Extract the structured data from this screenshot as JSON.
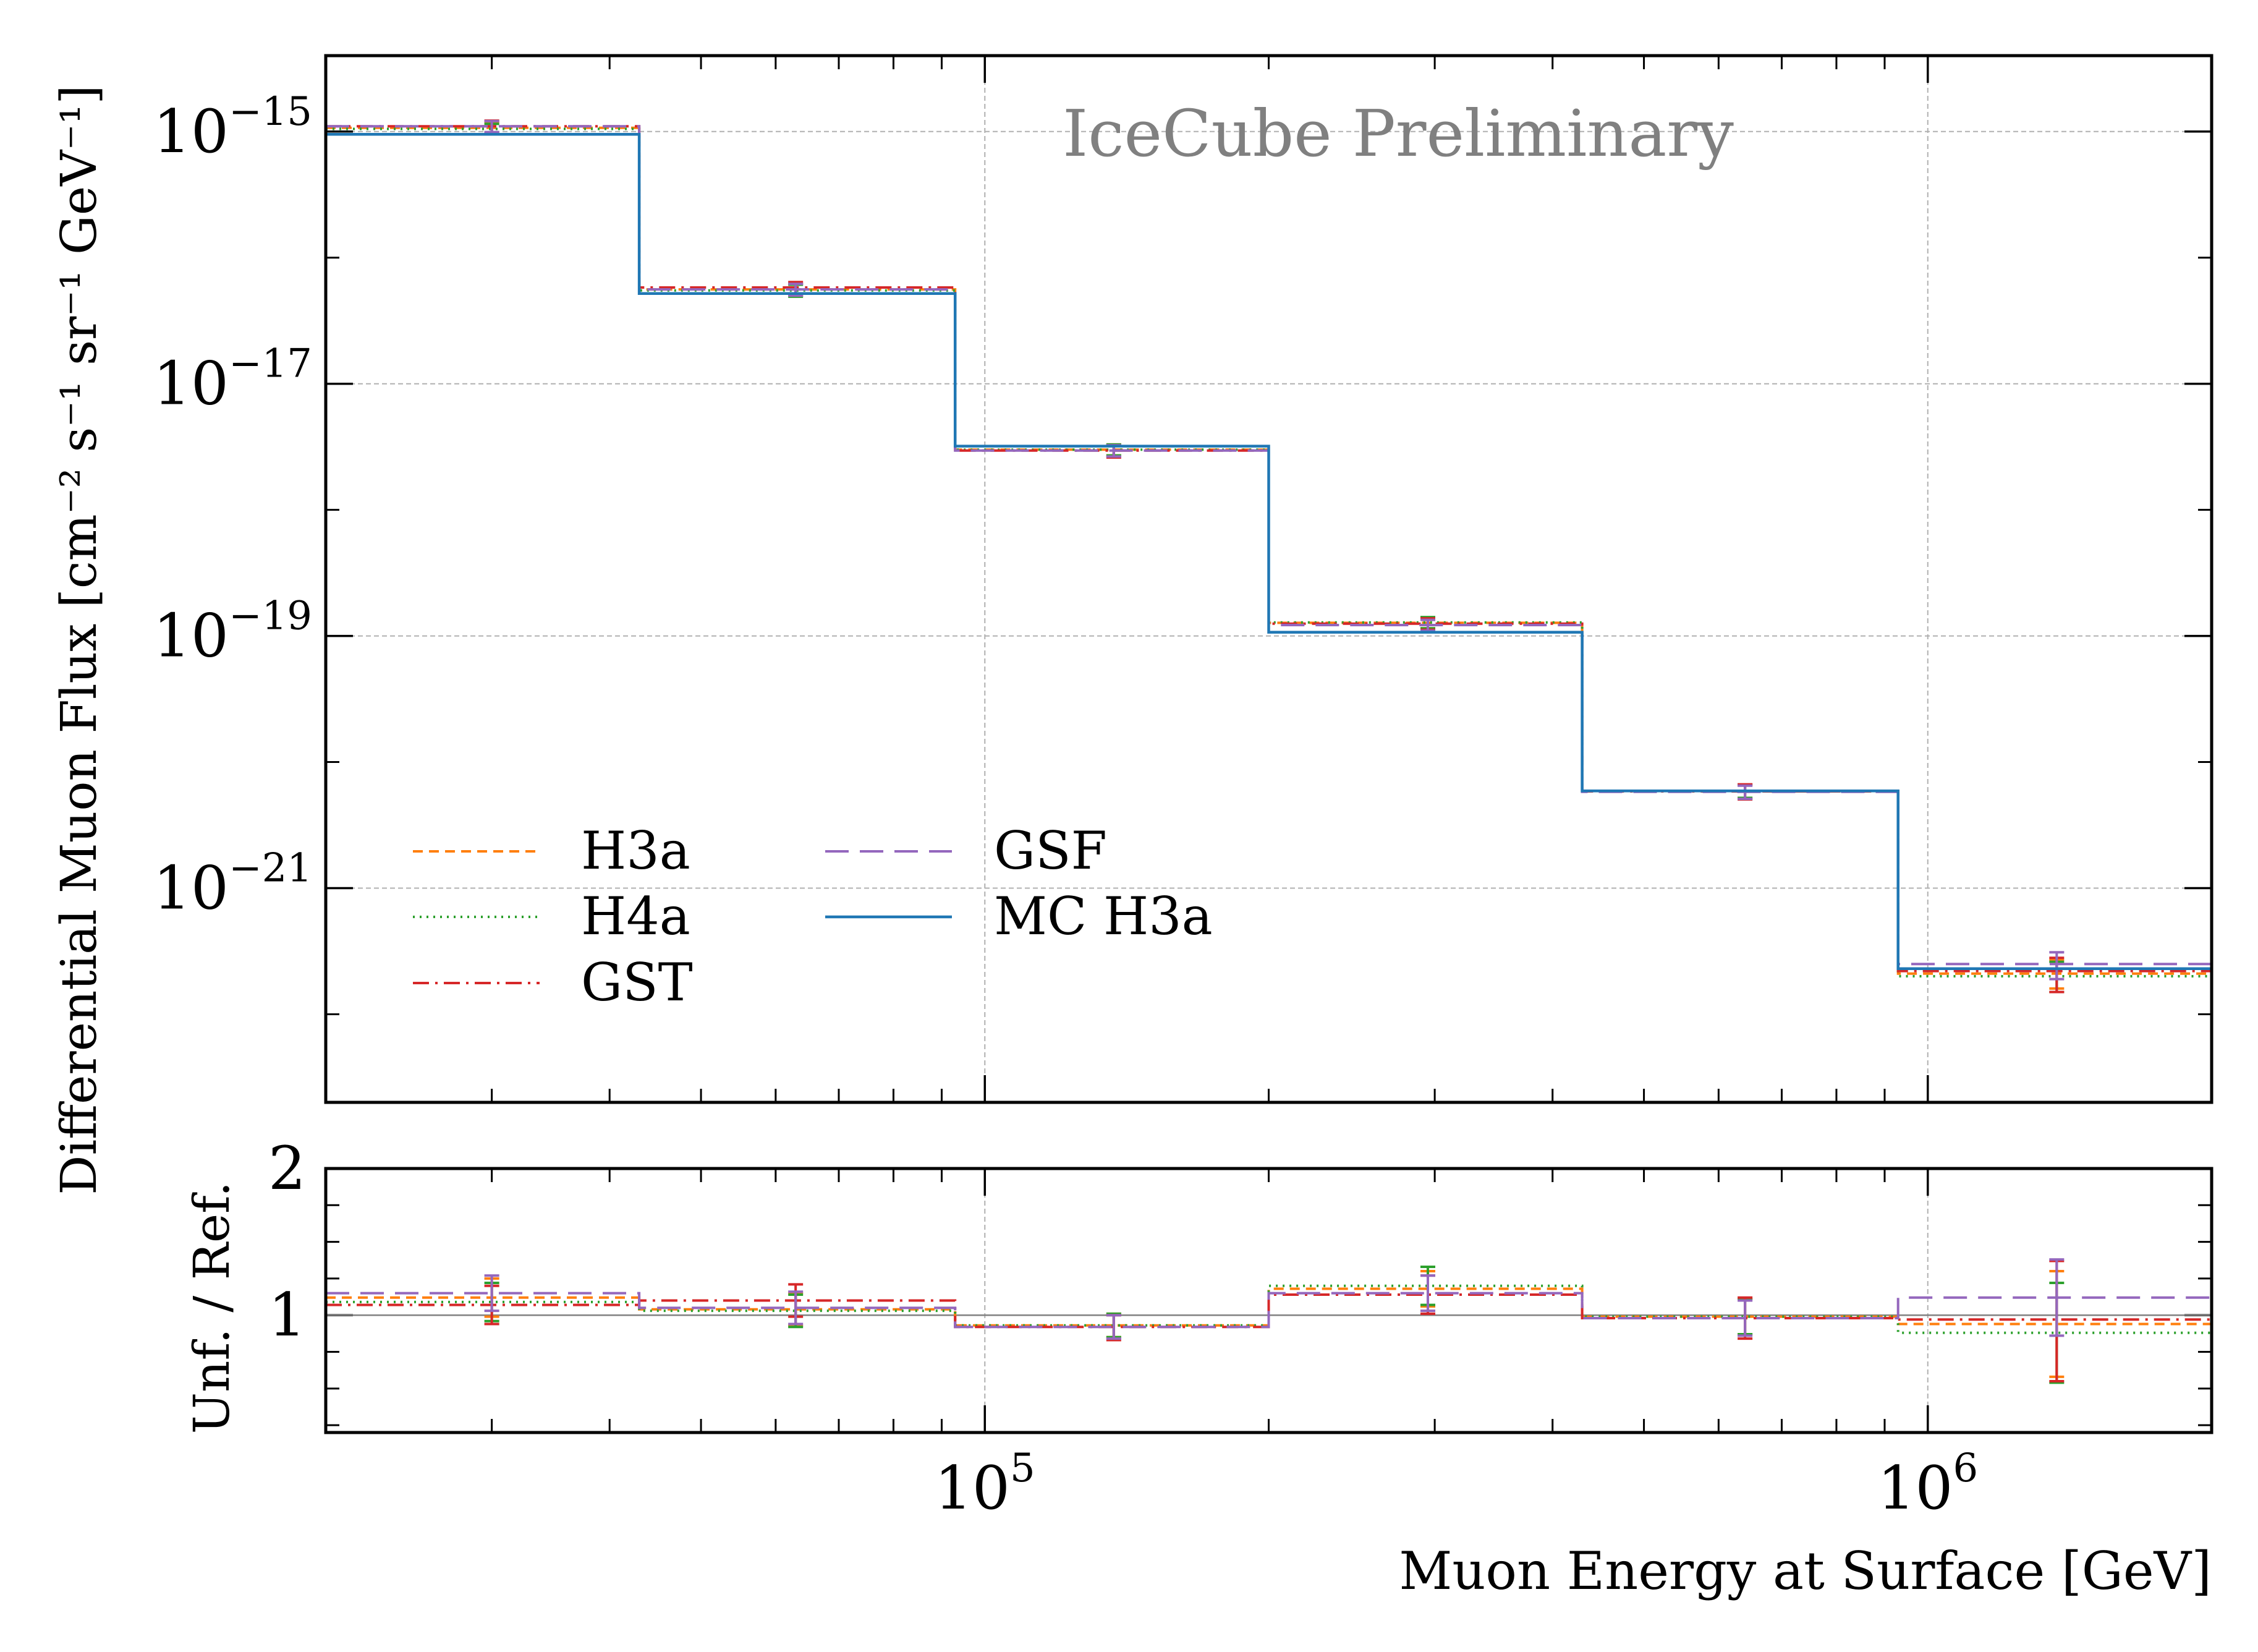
{
  "chart_data": [
    {
      "panel": "main",
      "type": "step",
      "title": "",
      "annotation": "IceCube Preliminary",
      "ylabel": "Differential Muon Flux [cm⁻² s⁻¹ sr⁻¹ GeV⁻¹]",
      "xlabel": "",
      "xscale": "log",
      "yscale": "log",
      "xlim": [
        20000,
        2000000
      ],
      "ylim": [
        2e-23,
        4e-15
      ],
      "grid": true,
      "legend_position": "lower-left",
      "y_ticks": [
        {
          "value": 1e-15,
          "base": "10",
          "exp": "−15"
        },
        {
          "value": 1e-17,
          "base": "10",
          "exp": "−17"
        },
        {
          "value": 1e-19,
          "base": "10",
          "exp": "−19"
        },
        {
          "value": 1e-21,
          "base": "10",
          "exp": "−21"
        }
      ],
      "bin_edges": [
        20000,
        43000,
        93000,
        200000,
        430000,
        930000,
        2000000
      ],
      "bin_centers": [
        30000,
        63000,
        137000,
        295000,
        640000,
        1370000
      ],
      "series": [
        {
          "name": "H3a",
          "color": "#ff7f0e",
          "style": "dashed",
          "values": [
            1.07e-15,
            5.6e-17,
            3e-18,
            1.27e-19,
            5.9e-21,
            2.1e-22
          ],
          "err_low": [
            1.1e-16,
            6e-18,
            3e-19,
            1.2e-20,
            7e-22,
            5e-23
          ],
          "err_high": [
            1.1e-16,
            6e-18,
            3e-19,
            1.2e-20,
            7e-22,
            6e-23
          ]
        },
        {
          "name": "H4a",
          "color": "#2ca02c",
          "style": "dotted",
          "values": [
            1.05e-15,
            5.5e-17,
            3e-18,
            1.28e-19,
            5.9e-21,
            2e-22
          ],
          "err_low": [
            1e-16,
            6e-18,
            3e-19,
            1.3e-20,
            7e-22,
            5e-23
          ],
          "err_high": [
            1e-16,
            6e-18,
            3e-19,
            1.3e-20,
            7e-22,
            6e-23
          ]
        },
        {
          "name": "GST",
          "color": "#d62728",
          "style": "dashdot",
          "values": [
            1.1e-15,
            5.8e-17,
            2.95e-18,
            1.25e-19,
            5.85e-21,
            2.2e-22
          ],
          "err_low": [
            1.2e-16,
            6e-18,
            3.5e-19,
            1.3e-20,
            8e-22,
            7e-23
          ],
          "err_high": [
            1.2e-16,
            6e-18,
            3e-19,
            1.3e-20,
            8e-22,
            6e-23
          ]
        },
        {
          "name": "GSF",
          "color": "#9467bd",
          "style": "longdash",
          "values": [
            1.1e-15,
            5.6e-17,
            2.95e-18,
            1.22e-19,
            5.8e-21,
            2.5e-22
          ],
          "err_low": [
            1.1e-16,
            6e-18,
            3e-19,
            1.2e-20,
            7e-22,
            6e-23
          ],
          "err_high": [
            1.1e-16,
            6e-18,
            3e-19,
            1.2e-20,
            7e-22,
            6e-23
          ]
        },
        {
          "name": "MC H3a",
          "color": "#1f77b4",
          "style": "solid",
          "values": [
            9.5e-16,
            5.2e-17,
            3.2e-18,
            1.07e-19,
            5.9e-21,
            2.3e-22
          ]
        }
      ]
    },
    {
      "panel": "ratio",
      "type": "step",
      "ylabel": "Unf. / Ref.",
      "xlabel": "Muon Energy at Surface [GeV]",
      "xscale": "log",
      "yscale": "linear",
      "xlim": [
        20000,
        2000000
      ],
      "ylim": [
        0.2,
        2.0
      ],
      "grid": true,
      "reference_line": 1.0,
      "y_ticks": [
        {
          "value": 1,
          "label": "1"
        },
        {
          "value": 2,
          "label": "2"
        }
      ],
      "x_ticks": [
        {
          "value": 100000,
          "base": "10",
          "exp": "5"
        },
        {
          "value": 1000000,
          "base": "10",
          "exp": "6"
        }
      ],
      "bin_edges": [
        20000,
        43000,
        93000,
        200000,
        430000,
        930000,
        2000000
      ],
      "bin_centers": [
        30000,
        63000,
        137000,
        295000,
        640000,
        1370000
      ],
      "series": [
        {
          "name": "H3a",
          "color": "#ff7f0e",
          "style": "dashed",
          "values": [
            1.12,
            1.04,
            0.93,
            1.18,
            0.99,
            0.94
          ],
          "err_low": [
            0.13,
            0.11,
            0.08,
            0.12,
            0.12,
            0.36
          ],
          "err_high": [
            0.13,
            0.11,
            0.08,
            0.12,
            0.12,
            0.36
          ]
        },
        {
          "name": "H4a",
          "color": "#2ca02c",
          "style": "dotted",
          "values": [
            1.09,
            1.03,
            0.93,
            1.2,
            0.99,
            0.88
          ],
          "err_low": [
            0.13,
            0.11,
            0.08,
            0.13,
            0.12,
            0.34
          ],
          "err_high": [
            0.13,
            0.11,
            0.08,
            0.13,
            0.12,
            0.34
          ]
        },
        {
          "name": "GST",
          "color": "#d62728",
          "style": "dashdot",
          "values": [
            1.07,
            1.1,
            0.92,
            1.14,
            0.98,
            0.97
          ],
          "err_low": [
            0.13,
            0.11,
            0.09,
            0.13,
            0.14,
            0.42
          ],
          "err_high": [
            0.13,
            0.11,
            0.08,
            0.13,
            0.14,
            0.4
          ]
        },
        {
          "name": "GSF",
          "color": "#9467bd",
          "style": "longdash",
          "values": [
            1.15,
            1.05,
            0.92,
            1.15,
            0.98,
            1.12
          ],
          "err_low": [
            0.12,
            0.11,
            0.08,
            0.12,
            0.12,
            0.26
          ],
          "err_high": [
            0.12,
            0.11,
            0.08,
            0.12,
            0.12,
            0.26
          ]
        }
      ]
    }
  ]
}
